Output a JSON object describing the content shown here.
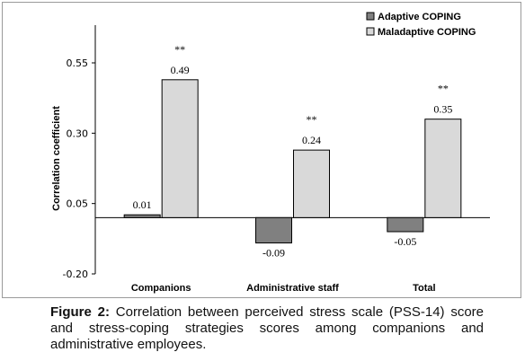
{
  "chart_data": {
    "type": "bar",
    "categories": [
      "Companions",
      "Administrative staff",
      "Total"
    ],
    "series": [
      {
        "name": "Adaptive COPING",
        "values": [
          0.01,
          -0.09,
          -0.05
        ],
        "color": "#808080",
        "labels": [
          "0.01",
          "-0.09",
          "-0.05"
        ],
        "significance": [
          "",
          "",
          ""
        ]
      },
      {
        "name": "Maladaptive COPING",
        "values": [
          0.49,
          0.24,
          0.35
        ],
        "color": "#d9d9d9",
        "labels": [
          "0.49",
          "0.24",
          "0.35"
        ],
        "significance": [
          "**",
          "**",
          "**"
        ]
      }
    ],
    "ylabel": "Correlation coefficient",
    "xlabel": "",
    "ylim": [
      -0.2,
      0.7
    ],
    "yticks": [
      "0.55",
      "0.30",
      "0.05",
      "-0.20"
    ],
    "legend_position": "top-right",
    "grid": false
  },
  "caption": {
    "label": "Figure 2:",
    "text": "Correlation between perceived stress scale (PSS-14) score and stress-coping strategies scores among companions and administrative employees."
  }
}
